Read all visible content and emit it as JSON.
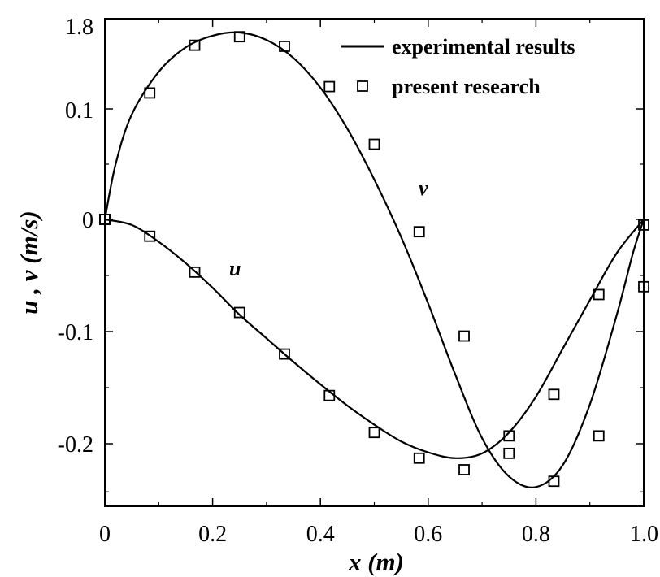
{
  "chart_data": {
    "type": "line",
    "xlabel": "x (m)",
    "ylabel": "u , v (m/s)",
    "xlim": [
      0,
      1.0
    ],
    "x_ticks": [
      0,
      0.2,
      0.4,
      0.6,
      0.8,
      1.0
    ],
    "x_tick_labels": [
      "0",
      "0.2",
      "0.4",
      "0.6",
      "0.8",
      "1.0"
    ],
    "y_tick_labels": [
      "1.8",
      "0.1",
      "0",
      "-0.1",
      "-0.2"
    ],
    "grid": false,
    "legend": {
      "placement": "top-right",
      "entries": [
        {
          "label": "experimental results",
          "marker": "line"
        },
        {
          "label": "present research",
          "marker": "open-square"
        }
      ]
    },
    "annotations": [
      {
        "text": "u",
        "curve": "u"
      },
      {
        "text": "v",
        "curve": "v"
      }
    ],
    "series": [
      {
        "name": "u",
        "line_x": [
          0,
          0.05,
          0.1,
          0.15,
          0.2,
          0.25,
          0.3,
          0.35,
          0.4,
          0.45,
          0.5,
          0.55,
          0.6,
          0.65,
          0.7,
          0.75,
          0.8,
          0.85,
          0.9,
          0.95,
          1.0
        ],
        "line_y": [
          0,
          -0.005,
          -0.02,
          -0.039,
          -0.061,
          -0.085,
          -0.106,
          -0.127,
          -0.147,
          -0.166,
          -0.183,
          -0.198,
          -0.209,
          -0.215,
          -0.21,
          -0.19,
          -0.158,
          -0.115,
          -0.072,
          -0.03,
          0
        ],
        "points_x": [
          0,
          0.0833,
          0.1667,
          0.25,
          0.3333,
          0.4167,
          0.5,
          0.5833,
          0.6667,
          0.75,
          0.8333,
          0.9167,
          1.0
        ],
        "points_y": [
          0,
          -0.015,
          -0.047,
          -0.083,
          -0.12,
          -0.157,
          -0.19,
          -0.215,
          -0.227,
          -0.21,
          -0.156,
          -0.067,
          -0.005
        ]
      },
      {
        "name": "v",
        "line_x": [
          0,
          0.02,
          0.05,
          0.1,
          0.15,
          0.2,
          0.25,
          0.3,
          0.35,
          0.4,
          0.45,
          0.5,
          0.55,
          0.6,
          0.65,
          0.7,
          0.75,
          0.8,
          0.85,
          0.9,
          0.95,
          0.98,
          1.0
        ],
        "line_y": [
          0,
          0.05,
          0.095,
          0.135,
          0.158,
          0.169,
          0.172,
          0.165,
          0.148,
          0.12,
          0.082,
          0.036,
          -0.016,
          -0.075,
          -0.138,
          -0.195,
          -0.234,
          -0.245,
          -0.222,
          -0.165,
          -0.085,
          -0.03,
          0
        ],
        "points_x": [
          0,
          0.0833,
          0.1667,
          0.25,
          0.3333,
          0.4167,
          0.5,
          0.5833,
          0.6667,
          0.75,
          0.8333,
          0.9167,
          1.0
        ],
        "points_y": [
          0,
          0.115,
          0.16,
          0.168,
          0.159,
          0.121,
          0.068,
          -0.011,
          -0.104,
          -0.193,
          -0.239,
          -0.193,
          -0.06
        ]
      }
    ]
  }
}
